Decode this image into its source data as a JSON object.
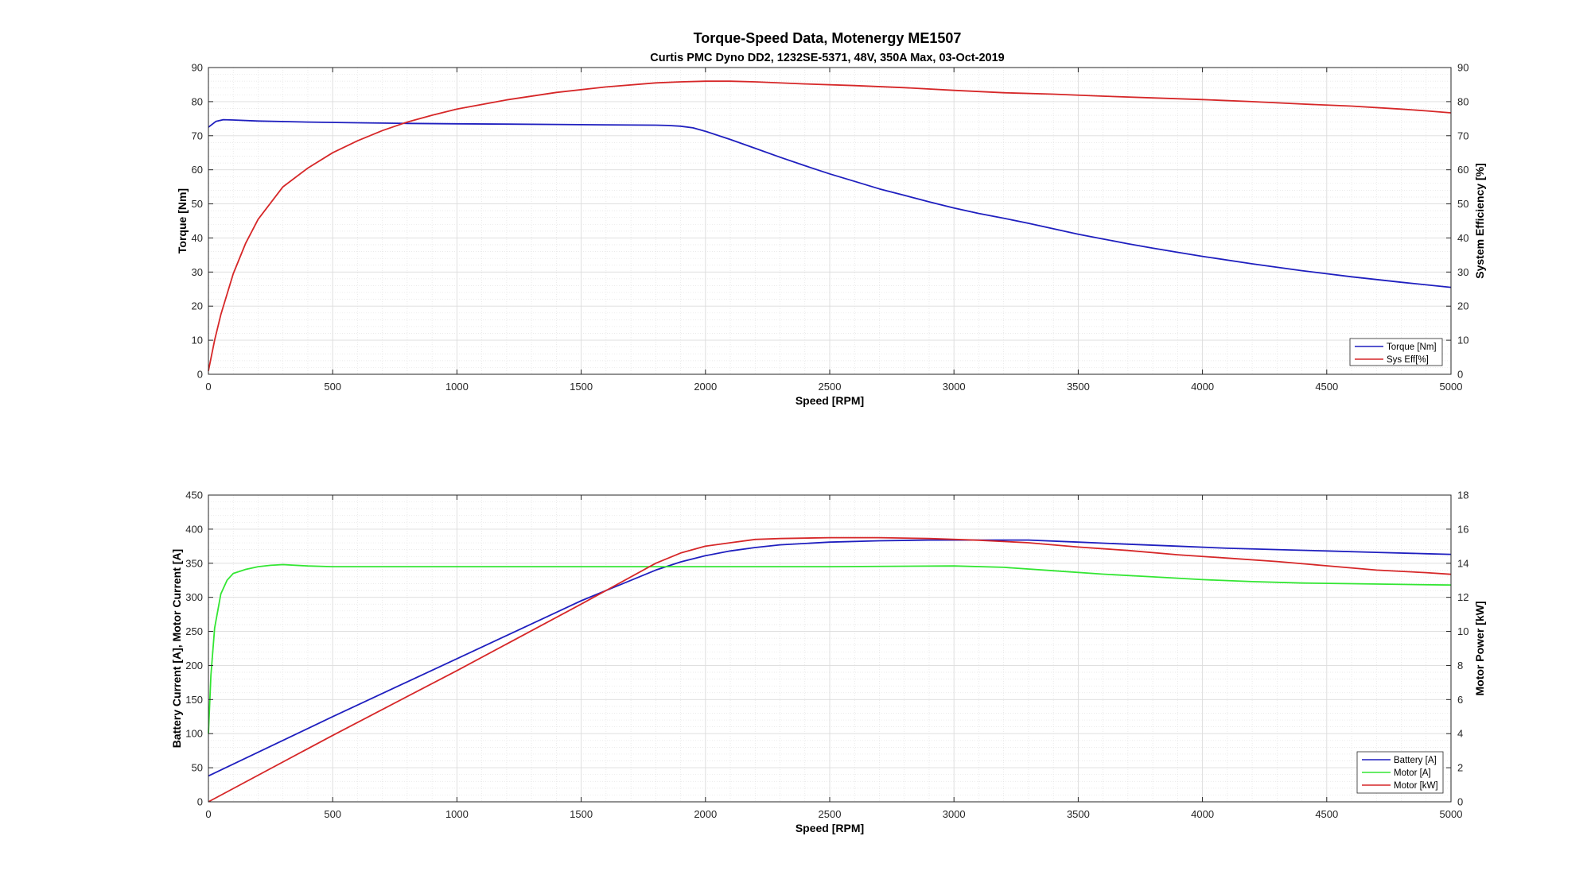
{
  "figure": {
    "title": "Torque-Speed Data, Motenergy ME1507",
    "subtitle": "Curtis PMC Dyno DD2, 1232SE-5371, 48V, 350A Max, 03-Oct-2019"
  },
  "chart_data": [
    {
      "type": "line",
      "xlabel": "Speed [RPM]",
      "ylabel": "Torque [Nm]",
      "ylabel_right": "System Efficiency [%]",
      "xlim": [
        0,
        5000
      ],
      "ylim": [
        0,
        90
      ],
      "ylim_right": [
        0,
        90
      ],
      "xticks": [
        0,
        500,
        1000,
        1500,
        2000,
        2500,
        3000,
        3500,
        4000,
        4500,
        5000
      ],
      "yticks": [
        0,
        10,
        20,
        30,
        40,
        50,
        60,
        70,
        80,
        90
      ],
      "yticks_right": [
        0,
        10,
        20,
        30,
        40,
        50,
        60,
        70,
        80,
        90
      ],
      "grid": true,
      "legend_position": "bottom-right",
      "series": [
        {
          "name": "Torque [Nm]",
          "axis": "left",
          "color": "#1f1fbf",
          "x": [
            0,
            30,
            60,
            100,
            200,
            400,
            600,
            800,
            1000,
            1200,
            1400,
            1600,
            1800,
            1850,
            1900,
            1950,
            2000,
            2100,
            2200,
            2300,
            2400,
            2500,
            2600,
            2700,
            2800,
            2900,
            3000,
            3100,
            3200,
            3300,
            3400,
            3500,
            3600,
            3700,
            3800,
            3900,
            4000,
            4200,
            4400,
            4600,
            4800,
            5000
          ],
          "y": [
            72.5,
            74.2,
            74.7,
            74.6,
            74.3,
            74.0,
            73.8,
            73.6,
            73.5,
            73.4,
            73.3,
            73.2,
            73.1,
            73.0,
            72.8,
            72.3,
            71.3,
            68.9,
            66.3,
            63.7,
            61.2,
            58.8,
            56.6,
            54.4,
            52.5,
            50.6,
            48.8,
            47.2,
            45.8,
            44.3,
            42.7,
            41.1,
            39.7,
            38.3,
            37.0,
            35.8,
            34.6,
            32.4,
            30.4,
            28.6,
            27.0,
            25.5
          ]
        },
        {
          "name": "Sys Eff[%]",
          "axis": "right",
          "color": "#d62728",
          "x": [
            0,
            25,
            50,
            100,
            150,
            200,
            300,
            400,
            500,
            600,
            700,
            800,
            900,
            1000,
            1200,
            1400,
            1600,
            1800,
            1900,
            2000,
            2100,
            2200,
            2400,
            2600,
            2800,
            3000,
            3200,
            3400,
            3600,
            3800,
            4000,
            4200,
            4400,
            4600,
            4800,
            4900,
            5000
          ],
          "y": [
            1.0,
            10.0,
            17.5,
            29.5,
            38.5,
            45.5,
            55.0,
            60.5,
            65.0,
            68.5,
            71.5,
            74.0,
            76.0,
            77.8,
            80.5,
            82.7,
            84.3,
            85.5,
            85.8,
            86.0,
            86.0,
            85.8,
            85.2,
            84.7,
            84.1,
            83.3,
            82.6,
            82.2,
            81.6,
            81.1,
            80.6,
            80.0,
            79.3,
            78.7,
            77.8,
            77.3,
            76.7
          ]
        }
      ]
    },
    {
      "type": "line",
      "xlabel": "Speed [RPM]",
      "ylabel": "Battery Current [A],   Motor Current [A]",
      "ylabel_right": "Motor Power [kW]",
      "xlim": [
        0,
        5000
      ],
      "ylim": [
        0,
        450
      ],
      "ylim_right": [
        0,
        18
      ],
      "xticks": [
        0,
        500,
        1000,
        1500,
        2000,
        2500,
        3000,
        3500,
        4000,
        4500,
        5000
      ],
      "yticks": [
        0,
        50,
        100,
        150,
        200,
        250,
        300,
        350,
        400,
        450
      ],
      "yticks_right": [
        0,
        2,
        4,
        6,
        8,
        10,
        12,
        14,
        16,
        18
      ],
      "grid": true,
      "legend_position": "bottom-right",
      "series": [
        {
          "name": "Battery [A]",
          "axis": "left",
          "color": "#1f1fbf",
          "x": [
            0,
            500,
            1000,
            1500,
            1800,
            1900,
            2000,
            2100,
            2200,
            2300,
            2500,
            2700,
            2900,
            3100,
            3300,
            3500,
            3700,
            3900,
            4100,
            4300,
            4500,
            4700,
            4900,
            5000
          ],
          "y": [
            38,
            125,
            210,
            295,
            340,
            352,
            361,
            368,
            373,
            377,
            381,
            383,
            384,
            384,
            384,
            381,
            378,
            375,
            372,
            370,
            368,
            366,
            364,
            363
          ]
        },
        {
          "name": "Motor [A]",
          "axis": "left",
          "color": "#33e633",
          "x": [
            0,
            10,
            25,
            50,
            75,
            100,
            150,
            200,
            250,
            300,
            400,
            500,
            1000,
            1500,
            2000,
            2500,
            3000,
            3200,
            3400,
            3600,
            3800,
            4000,
            4200,
            4400,
            4600,
            4800,
            5000
          ],
          "y": [
            100,
            185,
            255,
            305,
            325,
            335,
            341,
            345,
            347,
            348,
            346,
            345,
            345,
            345,
            345,
            345,
            346,
            344,
            339,
            334,
            330,
            326,
            323,
            321,
            320,
            319,
            318
          ]
        },
        {
          "name": "Motor [kW]",
          "axis": "right",
          "color": "#d62728",
          "x": [
            0,
            500,
            1000,
            1500,
            1800,
            1900,
            2000,
            2100,
            2200,
            2300,
            2500,
            2700,
            2900,
            3100,
            3300,
            3500,
            3700,
            3900,
            4100,
            4300,
            4500,
            4700,
            4900,
            5000
          ],
          "y": [
            0.0,
            3.9,
            7.7,
            11.6,
            14.0,
            14.6,
            15.0,
            15.2,
            15.4,
            15.45,
            15.5,
            15.5,
            15.45,
            15.35,
            15.2,
            14.95,
            14.75,
            14.5,
            14.3,
            14.1,
            13.85,
            13.6,
            13.45,
            13.35
          ]
        }
      ]
    }
  ]
}
